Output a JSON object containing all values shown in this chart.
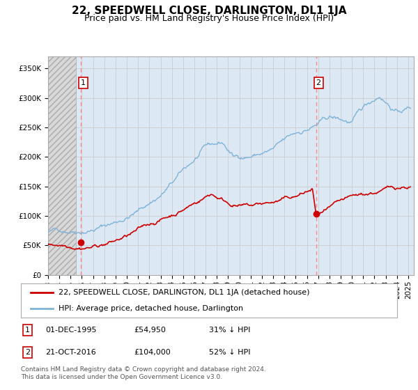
{
  "title": "22, SPEEDWELL CLOSE, DARLINGTON, DL1 1JA",
  "subtitle": "Price paid vs. HM Land Registry's House Price Index (HPI)",
  "xlim_start": 1993.0,
  "xlim_end": 2025.5,
  "ylim": [
    0,
    370000
  ],
  "yticks": [
    0,
    50000,
    100000,
    150000,
    200000,
    250000,
    300000,
    350000
  ],
  "ytick_labels": [
    "£0",
    "£50K",
    "£100K",
    "£150K",
    "£200K",
    "£250K",
    "£300K",
    "£350K"
  ],
  "transaction1_date": 1995.92,
  "transaction1_price": 54950,
  "transaction2_date": 2016.81,
  "transaction2_price": 104000,
  "transaction1_text1": "01-DEC-1995",
  "transaction1_text2": "£54,950",
  "transaction1_text3": "31% ↓ HPI",
  "transaction2_text1": "21-OCT-2016",
  "transaction2_text2": "£104,000",
  "transaction2_text3": "52% ↓ HPI",
  "legend_line1": "22, SPEEDWELL CLOSE, DARLINGTON, DL1 1JA (detached house)",
  "legend_line2": "HPI: Average price, detached house, Darlington",
  "footer": "Contains HM Land Registry data © Crown copyright and database right 2024.\nThis data is licensed under the Open Government Licence v3.0.",
  "background_color": "#dce9f5",
  "line_color_red": "#cc0000",
  "line_color_blue": "#7fb3d8",
  "dashed_line_color": "#ff8888",
  "title_fontsize": 11,
  "subtitle_fontsize": 9,
  "tick_fontsize": 7.5,
  "legend_fontsize": 8,
  "ann_fontsize": 8,
  "footer_fontsize": 6.5
}
